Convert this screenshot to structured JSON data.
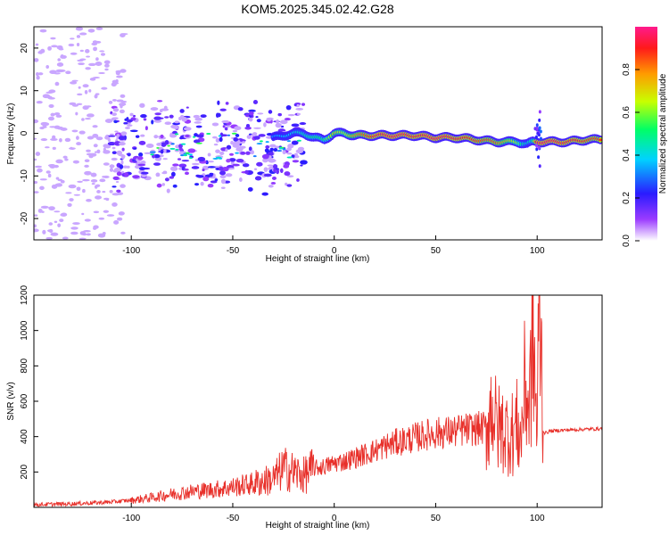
{
  "title": "KOM5.2025.345.02.42.G28",
  "colors": {
    "snr_line": "#e8302a",
    "axis": "#000000",
    "scatter_faint": "#c9a6ff",
    "scatter_mid": "#6a3cff",
    "colormap": [
      "#ffffff",
      "#9b3cff",
      "#2a1bff",
      "#00d2ff",
      "#00ff66",
      "#c8ff00",
      "#ff9b00",
      "#ff1a1a",
      "#ff1a8c"
    ]
  },
  "chart_data": [
    {
      "type": "heatmap",
      "title": "",
      "xlabel": "Height of straight line (km)",
      "ylabel": "Frequency (Hz)",
      "xlim": [
        -148,
        132
      ],
      "ylim": [
        -25,
        25
      ],
      "xticks": [
        -100,
        -50,
        0,
        50,
        100
      ],
      "yticks": [
        -20,
        -10,
        0,
        10,
        20
      ],
      "grid": false,
      "colorbar": {
        "label": "Normalized spectral amplitude",
        "range": [
          0,
          1
        ],
        "ticks": [
          "0.0",
          "0.2",
          "0.4",
          "0.6",
          "0.8"
        ]
      },
      "ridge": {
        "description_points_x": [
          -88,
          -70,
          -60,
          -50,
          -40,
          -30,
          -20,
          -15,
          -10,
          -5,
          0,
          5,
          10,
          20,
          30,
          40,
          50,
          60,
          70,
          80,
          90,
          95,
          98,
          100,
          105,
          115,
          125,
          132
        ],
        "frequency_y": [
          -3,
          -2,
          -1.5,
          -0.5,
          0,
          -1,
          0,
          0,
          -1,
          -1.5,
          0,
          0,
          -0.5,
          -0.5,
          -0.5,
          -0.5,
          -1,
          -1,
          -1.5,
          -2,
          -2,
          -2.5,
          -2,
          -2,
          -2,
          -2,
          -1.5,
          -1.5
        ],
        "amplitude": [
          0.2,
          0.25,
          0.3,
          0.35,
          0.3,
          0.35,
          0.4,
          0.45,
          0.5,
          0.5,
          0.7,
          0.6,
          0.75,
          0.9,
          0.95,
          0.9,
          0.95,
          0.9,
          0.85,
          0.8,
          0.6,
          0.4,
          0.5,
          0.95,
          0.95,
          0.9,
          0.85,
          0.85
        ]
      }
    },
    {
      "type": "line",
      "title": "",
      "xlabel": "Height of straight line (km)",
      "ylabel": "SNR (v/v)",
      "xlim": [
        -148,
        132
      ],
      "ylim": [
        0,
        1200
      ],
      "xticks": [
        -100,
        -50,
        0,
        50,
        100
      ],
      "yticks": [
        200,
        400,
        600,
        800,
        1000,
        1200
      ],
      "grid": false,
      "series": [
        {
          "x": [
            -148,
            -130,
            -110,
            -100,
            -90,
            -80,
            -70,
            -60,
            -50,
            -40,
            -30,
            -25,
            -20,
            -15,
            -10,
            -5,
            0,
            5,
            10,
            15,
            20,
            25,
            30,
            35,
            40,
            45,
            50,
            55,
            60,
            65,
            70,
            75,
            78,
            80,
            82,
            85,
            88,
            90,
            92,
            94,
            96,
            98,
            100,
            101,
            102,
            103,
            104,
            106,
            110,
            120,
            132
          ],
          "values": [
            15,
            20,
            30,
            40,
            55,
            75,
            90,
            100,
            115,
            135,
            160,
            220,
            200,
            180,
            220,
            230,
            250,
            260,
            280,
            300,
            320,
            345,
            365,
            380,
            395,
            410,
            420,
            425,
            430,
            440,
            445,
            450,
            600,
            440,
            450,
            430,
            420,
            460,
            380,
            700,
            550,
            980,
            400,
            1200,
            900,
            430,
            420,
            430,
            435,
            440,
            445
          ]
        }
      ]
    }
  ]
}
